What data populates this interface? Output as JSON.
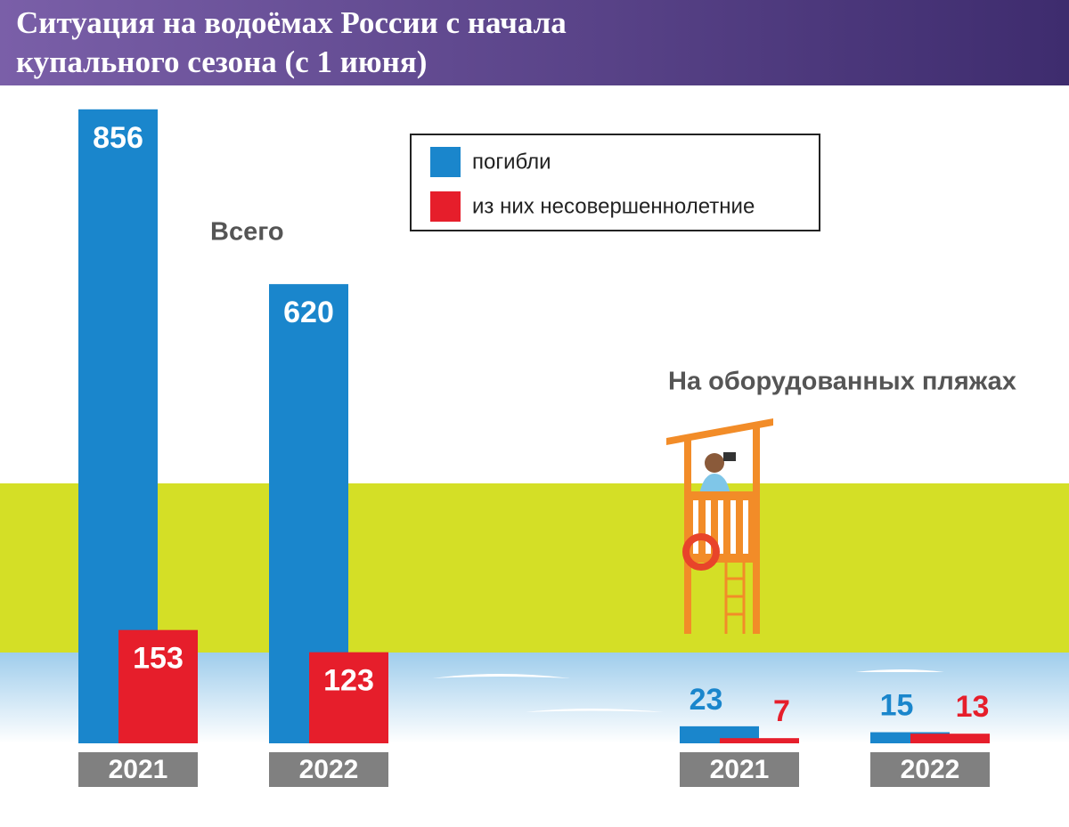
{
  "chart_data": {
    "type": "bar",
    "title": "Ситуация на водоёмах России с начала купального сезона (с 1 июня)",
    "annotations": [
      "Всего",
      "На оборудованных пляжах"
    ],
    "categories": [
      "2021",
      "2022",
      "2021",
      "2022"
    ],
    "series": [
      {
        "name": "погибли",
        "color": "#1a86cc",
        "values": [
          856,
          620,
          23,
          15
        ]
      },
      {
        "name": "из них несовершеннолетние",
        "color": "#e61e2b",
        "values": [
          153,
          123,
          7,
          13
        ]
      }
    ]
  }
}
